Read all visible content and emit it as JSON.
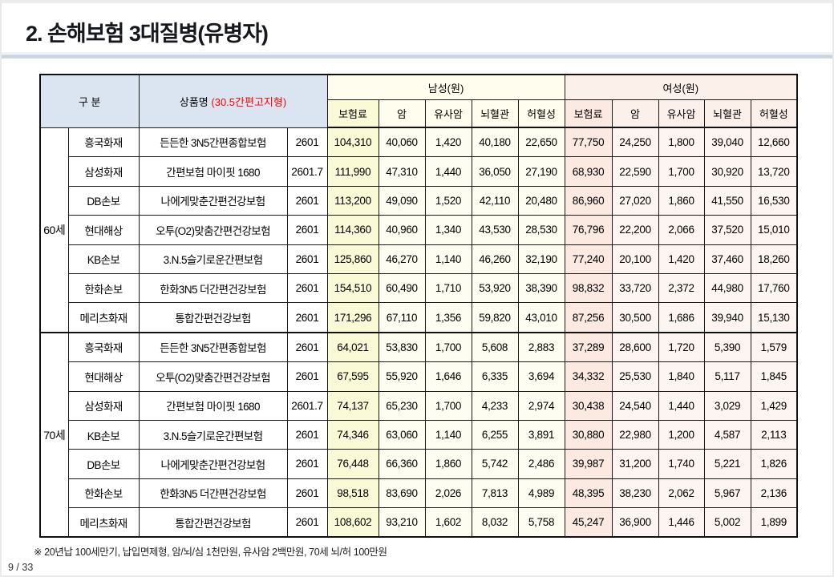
{
  "page": {
    "title": "2. 손해보험 3대질병(유병자)",
    "footnote": "※ 20년납 100세만기, 납입면제형, 암/뇌/심 1천만원, 유사암 2백만원, 70세 뇌/허 100만원",
    "page_number": "9 / 33"
  },
  "colors": {
    "header_blue": "#dbe5f1",
    "male_header_bg": "#fffeee",
    "female_header_bg": "#fcf0eb",
    "male_premium_bg": "#fafad6",
    "female_premium_bg": "#fbe9e2",
    "product_note_red": "#ff0000",
    "title_rule": "#c7d4df"
  },
  "table": {
    "header": {
      "col_group": "구 분",
      "col_product": "상품명",
      "col_product_note": "(30.5간편고지형)",
      "male_group": "남성(원)",
      "female_group": "여성(원)",
      "sub_columns": [
        "보험료",
        "암",
        "유사암",
        "뇌혈관",
        "허혈성"
      ]
    },
    "groups": [
      {
        "age": "60세",
        "rows": [
          {
            "company": "흥국화재",
            "product": "든든한 3N5간편종합보험",
            "code": "2601",
            "male": [
              "104,310",
              "40,060",
              "1,420",
              "40,180",
              "22,650"
            ],
            "female": [
              "77,750",
              "24,250",
              "1,800",
              "39,040",
              "12,660"
            ]
          },
          {
            "company": "삼성화재",
            "product": "간편보험 마이핏 1680",
            "code": "2601.7",
            "male": [
              "111,990",
              "47,310",
              "1,440",
              "36,050",
              "27,190"
            ],
            "female": [
              "68,930",
              "22,590",
              "1,700",
              "30,920",
              "13,720"
            ]
          },
          {
            "company": "DB손보",
            "product": "나에게맞춘간편건강보험",
            "code": "2601",
            "male": [
              "113,200",
              "49,090",
              "1,520",
              "42,110",
              "20,480"
            ],
            "female": [
              "86,960",
              "27,020",
              "1,860",
              "41,550",
              "16,530"
            ]
          },
          {
            "company": "현대해상",
            "product": "오투(O2)맞춤간편건강보험",
            "code": "2601",
            "male": [
              "114,360",
              "40,960",
              "1,340",
              "43,530",
              "28,530"
            ],
            "female": [
              "76,796",
              "22,200",
              "2,066",
              "37,520",
              "15,010"
            ]
          },
          {
            "company": "KB손보",
            "product": "3.N.5슬기로운간편보험",
            "code": "2601",
            "male": [
              "125,860",
              "46,270",
              "1,140",
              "46,260",
              "32,190"
            ],
            "female": [
              "77,240",
              "20,100",
              "1,420",
              "37,460",
              "18,260"
            ]
          },
          {
            "company": "한화손보",
            "product": "한화3N5 더간편건강보험",
            "code": "2601",
            "male": [
              "154,510",
              "60,490",
              "1,710",
              "53,920",
              "38,390"
            ],
            "female": [
              "98,832",
              "33,720",
              "2,372",
              "44,980",
              "17,760"
            ]
          },
          {
            "company": "메리츠화재",
            "product": "통합간편건강보험",
            "code": "2601",
            "male": [
              "171,296",
              "67,110",
              "1,356",
              "59,820",
              "43,010"
            ],
            "female": [
              "87,256",
              "30,500",
              "1,686",
              "39,940",
              "15,130"
            ]
          }
        ]
      },
      {
        "age": "70세",
        "rows": [
          {
            "company": "흥국화재",
            "product": "든든한 3N5간편종합보험",
            "code": "2601",
            "male": [
              "64,021",
              "53,830",
              "1,700",
              "5,608",
              "2,883"
            ],
            "female": [
              "37,289",
              "28,600",
              "1,720",
              "5,390",
              "1,579"
            ]
          },
          {
            "company": "현대해상",
            "product": "오투(O2)맞춤간편건강보험",
            "code": "2601",
            "male": [
              "67,595",
              "55,920",
              "1,646",
              "6,335",
              "3,694"
            ],
            "female": [
              "34,332",
              "25,530",
              "1,840",
              "5,117",
              "1,845"
            ]
          },
          {
            "company": "삼성화재",
            "product": "간편보험 마이핏 1680",
            "code": "2601.7",
            "male": [
              "74,137",
              "65,230",
              "1,700",
              "4,233",
              "2,974"
            ],
            "female": [
              "30,438",
              "24,540",
              "1,440",
              "3,029",
              "1,429"
            ]
          },
          {
            "company": "KB손보",
            "product": "3.N.5슬기로운간편보험",
            "code": "2601",
            "male": [
              "74,346",
              "63,060",
              "1,140",
              "6,255",
              "3,891"
            ],
            "female": [
              "30,880",
              "22,980",
              "1,200",
              "4,587",
              "2,113"
            ]
          },
          {
            "company": "DB손보",
            "product": "나에게맞춘간편건강보험",
            "code": "2601",
            "male": [
              "76,448",
              "66,360",
              "1,860",
              "5,742",
              "2,486"
            ],
            "female": [
              "39,987",
              "31,200",
              "1,740",
              "5,221",
              "1,826"
            ]
          },
          {
            "company": "한화손보",
            "product": "한화3N5 더간편건강보험",
            "code": "2601",
            "male": [
              "98,518",
              "83,690",
              "2,026",
              "7,813",
              "4,989"
            ],
            "female": [
              "48,395",
              "38,230",
              "2,062",
              "5,967",
              "2,136"
            ]
          },
          {
            "company": "메리츠화재",
            "product": "통합간편건강보험",
            "code": "2601",
            "male": [
              "108,602",
              "93,210",
              "1,602",
              "8,032",
              "5,758"
            ],
            "female": [
              "45,247",
              "36,900",
              "1,446",
              "5,002",
              "1,899"
            ]
          }
        ]
      }
    ]
  }
}
